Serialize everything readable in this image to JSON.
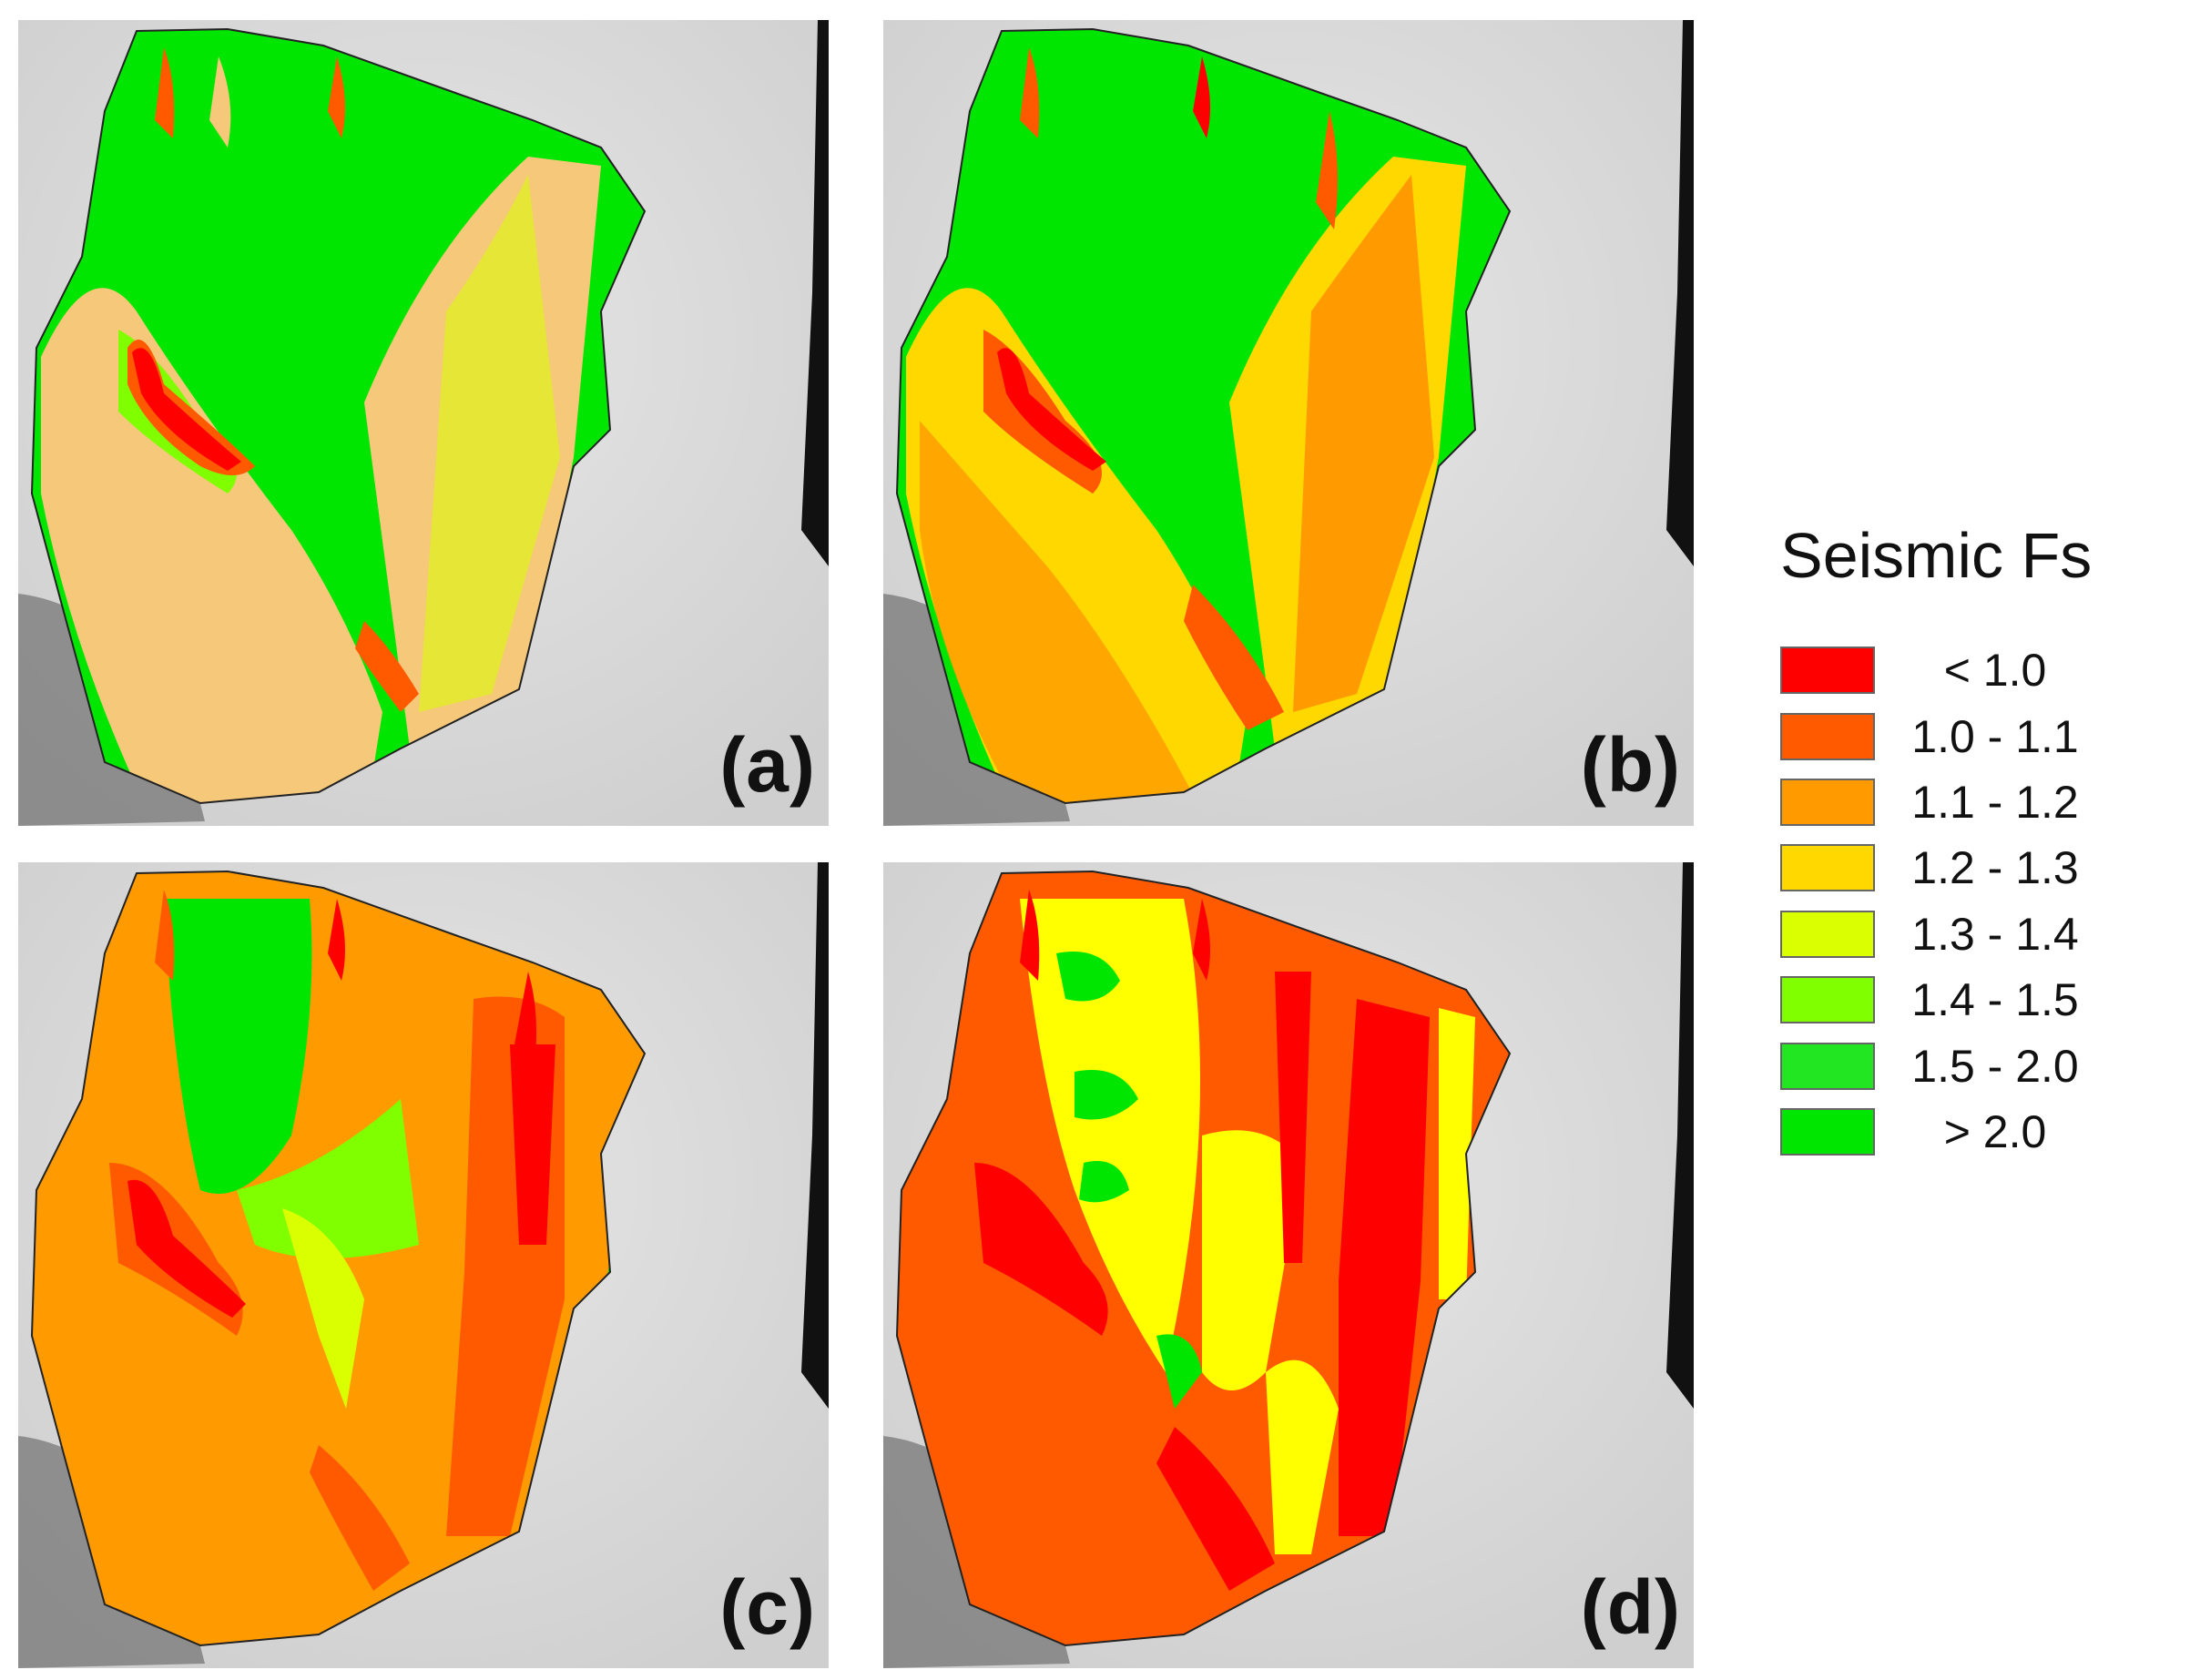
{
  "panels": [
    {
      "id": "a",
      "label": "(a)"
    },
    {
      "id": "b",
      "label": "(b)"
    },
    {
      "id": "c",
      "label": "(c)"
    },
    {
      "id": "d",
      "label": "(d)"
    }
  ],
  "legend": {
    "title": "Seismic Fs",
    "classes": [
      {
        "label": "< 1.0",
        "color": "#ff0000"
      },
      {
        "label": "1.0 - 1.1",
        "color": "#ff5a00"
      },
      {
        "label": "1.1 - 1.2",
        "color": "#ff9b00"
      },
      {
        "label": "1.2 - 1.3",
        "color": "#ffd800"
      },
      {
        "label": "1.3 - 1.4",
        "color": "#d9ff00"
      },
      {
        "label": "1.4 - 1.5",
        "color": "#80ff00"
      },
      {
        "label": "1.5 - 2.0",
        "color": "#22e622"
      },
      {
        "label": "> 2.0",
        "color": "#00e600"
      }
    ]
  }
}
